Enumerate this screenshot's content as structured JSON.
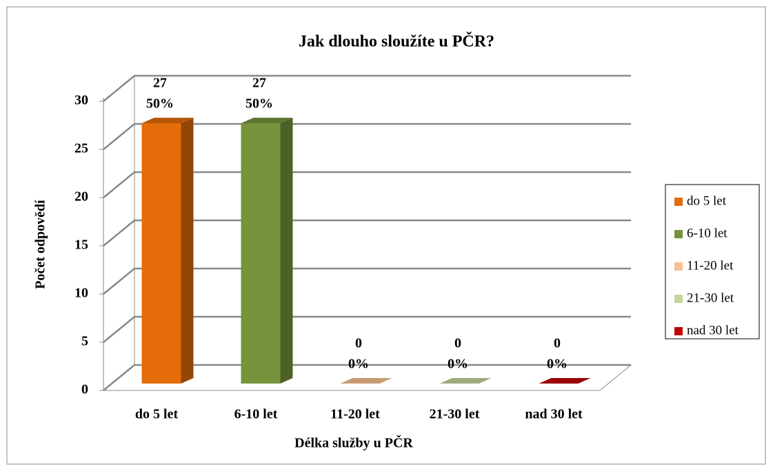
{
  "chart_data": {
    "type": "bar3d",
    "title": "Jak dlouho sloužíte  u PČR?",
    "x_label": "Délka služby u PČR",
    "y_label": "Počet odpovědí",
    "categories": [
      "do 5 let",
      "6-10 let",
      "11-20 let",
      "21-30 let",
      "nad 30 let"
    ],
    "values": [
      27,
      27,
      0,
      0,
      0
    ],
    "percent_labels": [
      "50%",
      "50%",
      "0%",
      "0%",
      "0%"
    ],
    "colors": [
      "#e46c0a",
      "#77933c",
      "#fac090",
      "#c3d69b",
      "#c00000"
    ],
    "ylim": [
      0,
      30
    ],
    "yticks": [
      0,
      5,
      10,
      15,
      20,
      25,
      30
    ],
    "grid": true,
    "legend": "right"
  }
}
